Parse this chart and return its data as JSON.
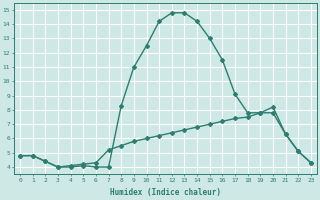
{
  "line1_x": [
    0,
    1,
    2,
    3,
    4,
    5,
    6,
    7,
    8,
    9,
    10,
    11,
    12,
    13,
    14,
    15,
    16,
    17,
    18,
    19,
    20,
    21,
    22,
    23
  ],
  "line1_y": [
    4.8,
    4.8,
    4.4,
    4.0,
    4.0,
    4.1,
    4.0,
    4.0,
    8.3,
    11.0,
    12.5,
    14.2,
    14.8,
    14.8,
    14.2,
    13.0,
    11.5,
    9.1,
    7.8,
    7.8,
    8.2,
    6.3,
    5.1,
    4.3
  ],
  "line2_x": [
    0,
    1,
    2,
    3,
    4,
    5,
    6,
    7,
    8,
    9,
    10,
    11,
    12,
    13,
    14,
    15,
    16,
    17,
    18,
    19,
    20,
    21,
    22,
    23
  ],
  "line2_y": [
    4.8,
    4.8,
    4.4,
    4.0,
    4.1,
    4.2,
    4.3,
    5.2,
    5.5,
    5.8,
    6.0,
    6.2,
    6.4,
    6.6,
    6.8,
    7.0,
    7.2,
    7.4,
    7.5,
    7.8,
    7.8,
    6.3,
    5.1,
    4.3
  ],
  "line_color": "#2e7d72",
  "bg_color": "#cde8e5",
  "grid_color": "#ffffff",
  "xlabel": "Humidex (Indice chaleur)",
  "xlim": [
    -0.5,
    23.5
  ],
  "ylim": [
    3.5,
    15.5
  ],
  "yticks": [
    4,
    5,
    6,
    7,
    8,
    9,
    10,
    11,
    12,
    13,
    14,
    15
  ],
  "xticks": [
    0,
    1,
    2,
    3,
    4,
    5,
    6,
    7,
    8,
    9,
    10,
    11,
    12,
    13,
    14,
    15,
    16,
    17,
    18,
    19,
    20,
    21,
    22,
    23
  ],
  "marker": "D",
  "marker_size": 2,
  "line_width": 1.0
}
